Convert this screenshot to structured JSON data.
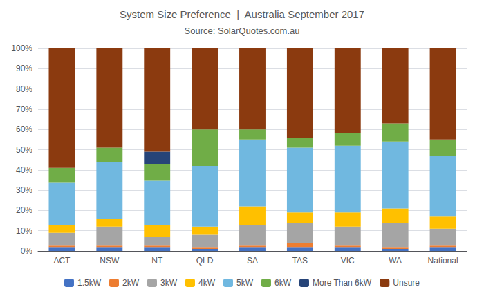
{
  "chart_data": {
    "type": "bar",
    "title": "System Size Preference  |  Australia September 2017",
    "subtitle": "Source: SolarQuotes.com.au",
    "categories": [
      "ACT",
      "NSW",
      "NT",
      "QLD",
      "SA",
      "TAS",
      "VIC",
      "WA",
      "National"
    ],
    "series": [
      {
        "name": "1.5kW",
        "color": "#4472C4",
        "values": [
          2,
          2,
          2,
          1,
          2,
          2,
          2,
          1,
          2
        ]
      },
      {
        "name": "2kW",
        "color": "#ED7D31",
        "values": [
          1,
          1,
          1,
          1,
          1,
          2,
          1,
          1,
          1
        ]
      },
      {
        "name": "3kW",
        "color": "#A5A5A5",
        "values": [
          6,
          9,
          4,
          6,
          10,
          10,
          9,
          12,
          8
        ]
      },
      {
        "name": "4kW",
        "color": "#FFC000",
        "values": [
          4,
          4,
          6,
          4,
          9,
          5,
          7,
          7,
          6
        ]
      },
      {
        "name": "5kW",
        "color": "#70B8E0",
        "values": [
          21,
          28,
          22,
          30,
          33,
          32,
          33,
          33,
          30
        ]
      },
      {
        "name": "6kW",
        "color": "#70AD47",
        "values": [
          7,
          7,
          8,
          18,
          5,
          5,
          6,
          9,
          8
        ]
      },
      {
        "name": "More Than 6kW",
        "color": "#264478",
        "values": [
          0,
          0,
          6,
          0,
          0,
          0,
          0,
          0,
          0
        ]
      },
      {
        "name": "Unsure",
        "color": "#8B3A0F",
        "values": [
          59,
          49,
          51,
          40,
          40,
          44,
          42,
          37,
          45
        ]
      }
    ],
    "stacked": true,
    "ylim": [
      0,
      100
    ],
    "yticks": [
      {
        "value": 0,
        "label": "0%"
      },
      {
        "value": 10,
        "label": "10%"
      },
      {
        "value": 20,
        "label": "20%"
      },
      {
        "value": 30,
        "label": "30%"
      },
      {
        "value": 40,
        "label": "40%"
      },
      {
        "value": 50,
        "label": "50%"
      },
      {
        "value": 60,
        "label": "60%"
      },
      {
        "value": 70,
        "label": "70%"
      },
      {
        "value": 80,
        "label": "80%"
      },
      {
        "value": 90,
        "label": "90%"
      },
      {
        "value": 100,
        "label": "100%"
      }
    ],
    "grid": true,
    "legend": "bottom"
  }
}
